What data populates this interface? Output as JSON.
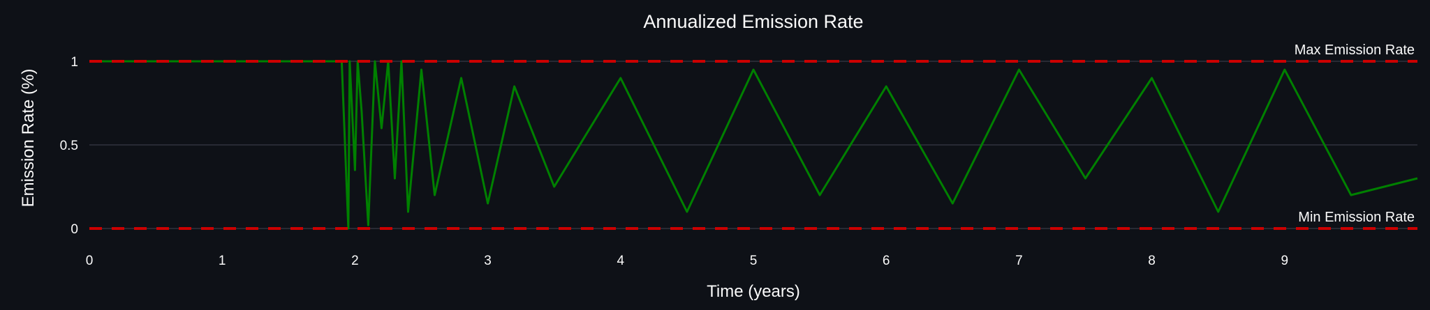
{
  "chart_data": {
    "type": "line",
    "title": "Annualized Emission Rate",
    "xlabel": "Time (years)",
    "ylabel": "Emission Rate (%)",
    "xlim": [
      0,
      10
    ],
    "ylim": [
      0,
      1
    ],
    "x_ticks": [
      0,
      1,
      2,
      3,
      4,
      5,
      6,
      7,
      8,
      9
    ],
    "y_ticks": [
      0,
      0.5,
      1
    ],
    "y_tick_labels": [
      "0",
      "0.5",
      "1"
    ],
    "grid": "horizontal",
    "series": [
      {
        "color": "#008000",
        "x": [
          0.0,
          0.5,
          1.0,
          1.5,
          1.9,
          1.95,
          1.96,
          2.0,
          2.02,
          2.05,
          2.1,
          2.15,
          2.2,
          2.25,
          2.3,
          2.35,
          2.4,
          2.5,
          2.6,
          2.8,
          3.0,
          3.2,
          3.5,
          4.0,
          4.5,
          5.0,
          5.5,
          6.0,
          6.5,
          7.0,
          7.5,
          8.0,
          8.5,
          9.0,
          9.5,
          10.0
        ],
        "y": [
          1.0,
          1.0,
          1.0,
          1.0,
          1.0,
          0.0,
          1.0,
          0.35,
          1.0,
          0.7,
          0.02,
          1.0,
          0.6,
          1.0,
          0.3,
          1.0,
          0.1,
          0.95,
          0.2,
          0.9,
          0.15,
          0.85,
          0.25,
          0.9,
          0.1,
          0.95,
          0.2,
          0.85,
          0.15,
          0.95,
          0.3,
          0.9,
          0.1,
          0.95,
          0.2,
          0.3
        ]
      }
    ],
    "reference_lines": [
      {
        "label": "Max Emission Rate",
        "y": 1,
        "color": "#cc0000",
        "style": "dashed"
      },
      {
        "label": "Min Emission Rate",
        "y": 0,
        "color": "#cc0000",
        "style": "dashed"
      }
    ]
  }
}
